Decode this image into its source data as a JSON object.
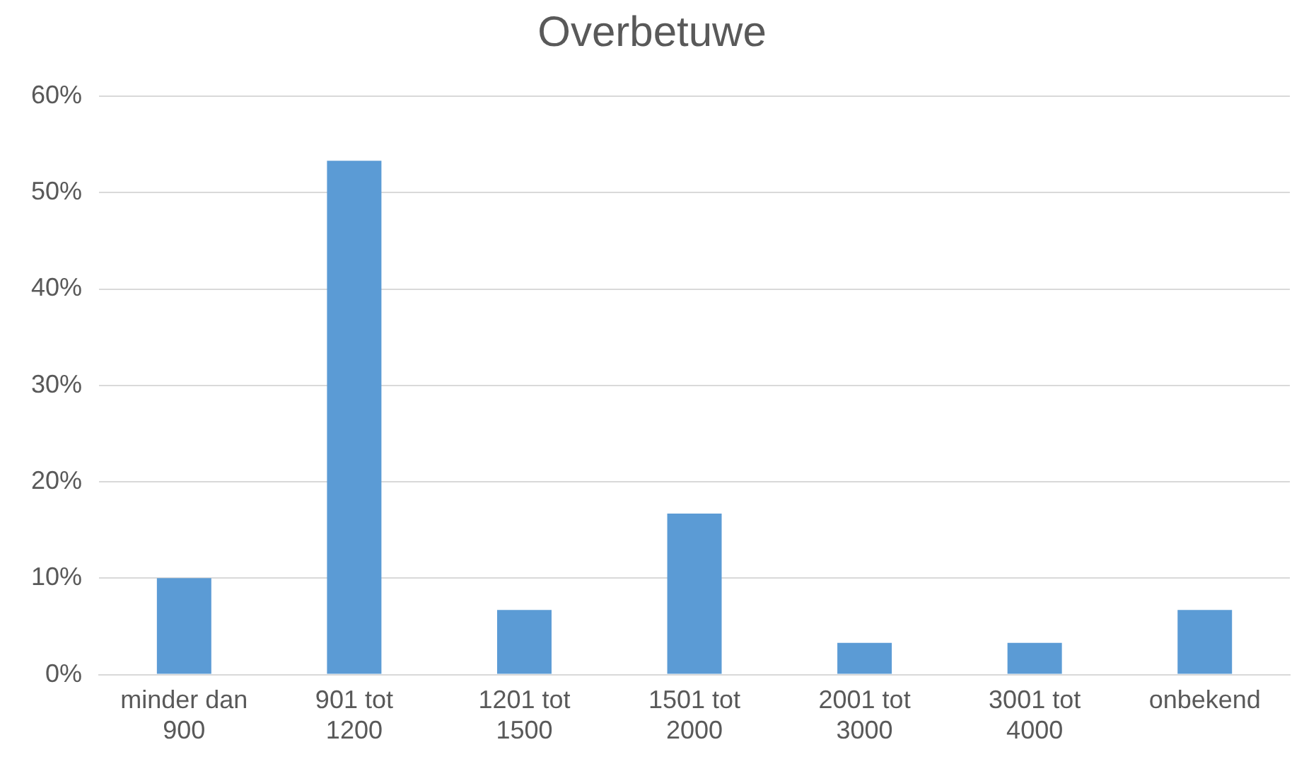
{
  "chart_data": {
    "type": "bar",
    "title": "Overbetuwe",
    "categories": [
      "minder dan 900",
      "901 tot 1200",
      "1201 tot 1500",
      "1501 tot 2000",
      "2001 tot 3000",
      "3001 tot 4000",
      "onbekend"
    ],
    "values": [
      10,
      53.3,
      6.7,
      16.7,
      3.3,
      3.3,
      6.7
    ],
    "color": "#5b9bd5",
    "ylim": [
      0,
      60
    ],
    "yticks": [
      {
        "value": 0,
        "label": "0%"
      },
      {
        "value": 10,
        "label": "10%"
      },
      {
        "value": 20,
        "label": "20%"
      },
      {
        "value": 30,
        "label": "30%"
      },
      {
        "value": 40,
        "label": "40%"
      },
      {
        "value": 50,
        "label": "50%"
      },
      {
        "value": 60,
        "label": "60%"
      }
    ],
    "grid": "y"
  }
}
